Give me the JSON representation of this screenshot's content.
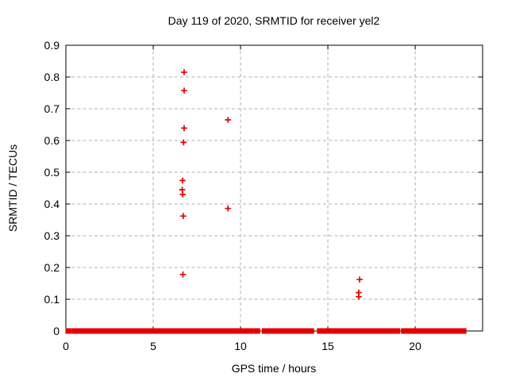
{
  "chart_data": {
    "type": "scatter",
    "title": "Day 119 of 2020, SRMTID for receiver yel2",
    "xlabel": "GPS time / hours",
    "ylabel": "SRMTID / TECUs",
    "xlim": [
      0,
      23.86
    ],
    "ylim": [
      0,
      0.9
    ],
    "grid": true,
    "legend": "none",
    "marker": "plus",
    "colors": {
      "marker": "#e60000",
      "grid": "#b0b0b0",
      "frame": "#000000",
      "background": "#ffffff"
    },
    "xticks": [
      {
        "value": 0,
        "label": "0"
      },
      {
        "value": 5,
        "label": "5"
      },
      {
        "value": 10,
        "label": "10"
      },
      {
        "value": 15,
        "label": "15"
      },
      {
        "value": 20,
        "label": "20"
      }
    ],
    "yticks": [
      {
        "value": 0.0,
        "label": "0"
      },
      {
        "value": 0.1,
        "label": "0.1"
      },
      {
        "value": 0.2,
        "label": "0.2"
      },
      {
        "value": 0.3,
        "label": "0.3"
      },
      {
        "value": 0.4,
        "label": "0.4"
      },
      {
        "value": 0.5,
        "label": "0.5"
      },
      {
        "value": 0.6,
        "label": "0.6"
      },
      {
        "value": 0.7,
        "label": "0.7"
      },
      {
        "value": 0.8,
        "label": "0.8"
      },
      {
        "value": 0.9,
        "label": "0.9"
      }
    ],
    "points": [
      [
        6.77,
        0.815
      ],
      [
        6.77,
        0.757
      ],
      [
        6.77,
        0.639
      ],
      [
        6.74,
        0.594
      ],
      [
        6.68,
        0.474
      ],
      [
        6.66,
        0.445
      ],
      [
        6.69,
        0.43
      ],
      [
        6.72,
        0.362
      ],
      [
        6.7,
        0.178
      ],
      [
        9.28,
        0.665
      ],
      [
        9.28,
        0.386
      ],
      [
        16.82,
        0.162
      ],
      [
        16.77,
        0.121
      ],
      [
        16.77,
        0.108
      ]
    ],
    "baseline_value": 0,
    "baseline_segments": [
      [
        0.09,
        0.24
      ],
      [
        0.47,
        1.45
      ],
      [
        1.6,
        1.8
      ],
      [
        1.91,
        2.25
      ],
      [
        2.33,
        2.68
      ],
      [
        2.82,
        2.9
      ],
      [
        3.09,
        3.24
      ],
      [
        3.35,
        3.45
      ],
      [
        3.55,
        3.7
      ],
      [
        3.88,
        4.86
      ],
      [
        4.97,
        5.1
      ],
      [
        5.21,
        5.36
      ],
      [
        5.47,
        5.85
      ],
      [
        5.97,
        6.15
      ],
      [
        6.3,
        6.76
      ],
      [
        6.91,
        7.22
      ],
      [
        7.29,
        7.94
      ],
      [
        8.09,
        8.66
      ],
      [
        8.82,
        9.12
      ],
      [
        9.18,
        10.09
      ],
      [
        10.24,
        10.62
      ],
      [
        10.85,
        11.01
      ],
      [
        11.33,
        11.5
      ],
      [
        11.58,
        12.51
      ],
      [
        12.64,
        12.97
      ],
      [
        13.05,
        13.35
      ],
      [
        13.5,
        13.73
      ],
      [
        13.8,
        14.1
      ],
      [
        14.49,
        14.79
      ],
      [
        14.95,
        15.06
      ],
      [
        15.24,
        16.15
      ],
      [
        16.27,
        16.38
      ],
      [
        16.45,
        16.91
      ],
      [
        17.06,
        17.44
      ],
      [
        17.51,
        17.67
      ],
      [
        17.74,
        17.85
      ],
      [
        17.94,
        19.03
      ],
      [
        19.3,
        19.64
      ],
      [
        19.76,
        21.0
      ],
      [
        21.08,
        22.82
      ]
    ]
  }
}
